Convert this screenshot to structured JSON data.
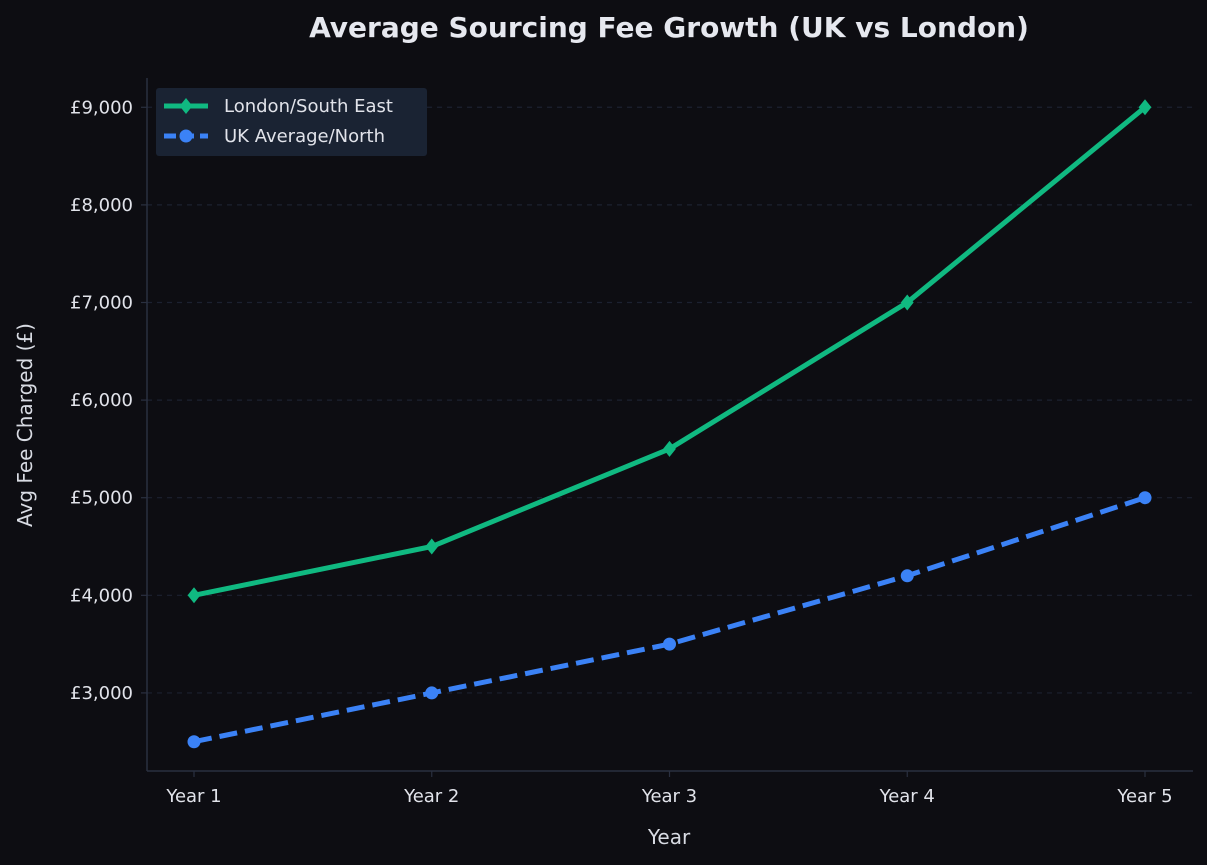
{
  "chart_data": {
    "type": "line",
    "title": "Average Sourcing Fee Growth (UK vs London)",
    "xlabel": "Year",
    "ylabel": "Avg Fee Charged (£)",
    "categories": [
      "Year 1",
      "Year 2",
      "Year 3",
      "Year 4",
      "Year 5"
    ],
    "y_ticks": [
      3000,
      4000,
      5000,
      6000,
      7000,
      8000,
      9000
    ],
    "y_tick_labels": [
      "£3,000",
      "£4,000",
      "£5,000",
      "£6,000",
      "£7,000",
      "£8,000",
      "£9,000"
    ],
    "ylim": [
      2200,
      9300
    ],
    "grid": "horizontal dashed",
    "legend_position": "top-left",
    "series": [
      {
        "name": "London/South East",
        "values": [
          4000,
          4500,
          5500,
          7000,
          9000
        ],
        "color": "#10b981",
        "line_style": "solid",
        "marker": "diamond"
      },
      {
        "name": "UK Average/North",
        "values": [
          2500,
          3000,
          3500,
          4200,
          5000
        ],
        "color": "#3b82f6",
        "line_style": "dashed",
        "marker": "circle"
      }
    ],
    "colors": {
      "background": "#0d0d12",
      "axis": "#2a3040",
      "grid": "#1c2130",
      "legend_bg": "#1a2333",
      "text": "#e1e3ea"
    }
  }
}
